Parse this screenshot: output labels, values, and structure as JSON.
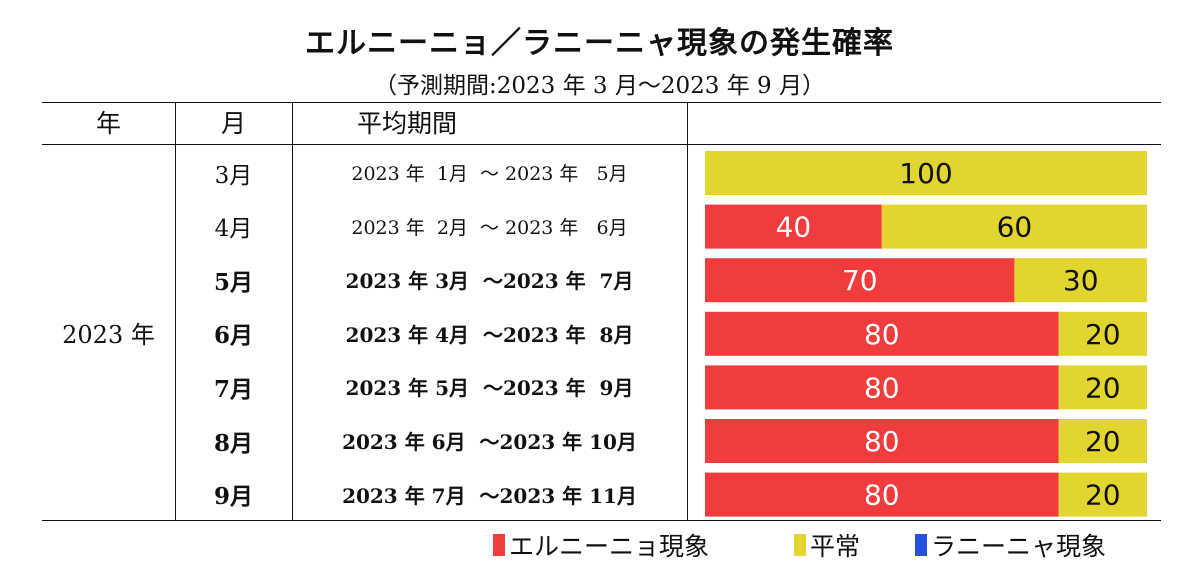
{
  "title": "エルニーニョ／ラニーニャ現象の発生確率",
  "subtitle": "（予測期間:2023 年 3 月～2023 年 9 月）",
  "headers": {
    "year": "年",
    "month": "月",
    "period": "平均期間",
    "chart": ""
  },
  "year_label": "2023 年",
  "rows": [
    {
      "month": "3月",
      "period": "2023 年  1月  ～ 2023 年   5月",
      "bold": false
    },
    {
      "month": "4月",
      "period": "2023 年  2月  ～ 2023 年   6月",
      "bold": false
    },
    {
      "month": "5月",
      "period": "2023 年 3月  ～2023 年  7月",
      "bold": true
    },
    {
      "month": "6月",
      "period": "2023 年 4月  ～2023 年  8月",
      "bold": true
    },
    {
      "month": "7月",
      "period": "2023 年 5月  ～2023 年  9月",
      "bold": true
    },
    {
      "month": "8月",
      "period": "2023 年 6月  ～2023 年 10月",
      "bold": true
    },
    {
      "month": "9月",
      "period": "2023 年 7月  ～2023 年 11月",
      "bold": true
    }
  ],
  "legend": [
    {
      "label": "エルニーニョ現象",
      "color": "#f03c3c"
    },
    {
      "label": "平常",
      "color": "#e3d530"
    },
    {
      "label": "ラニーニャ現象",
      "color": "#2550e0"
    }
  ],
  "chart_data": {
    "type": "bar",
    "stacked": true,
    "orientation": "horizontal",
    "categories": [
      "3月",
      "4月",
      "5月",
      "6月",
      "7月",
      "8月",
      "9月"
    ],
    "series": [
      {
        "name": "エルニーニョ現象",
        "color": "#f03c3c",
        "values": [
          0,
          40,
          70,
          80,
          80,
          80,
          80
        ]
      },
      {
        "name": "平常",
        "color": "#e3d530",
        "values": [
          100,
          60,
          30,
          20,
          20,
          20,
          20
        ]
      },
      {
        "name": "ラニーニャ現象",
        "color": "#2550e0",
        "values": [
          0,
          0,
          0,
          0,
          0,
          0,
          0
        ]
      }
    ],
    "xlim": [
      0,
      100
    ],
    "title": "エルニーニョ／ラニーニャ現象の発生確率"
  }
}
